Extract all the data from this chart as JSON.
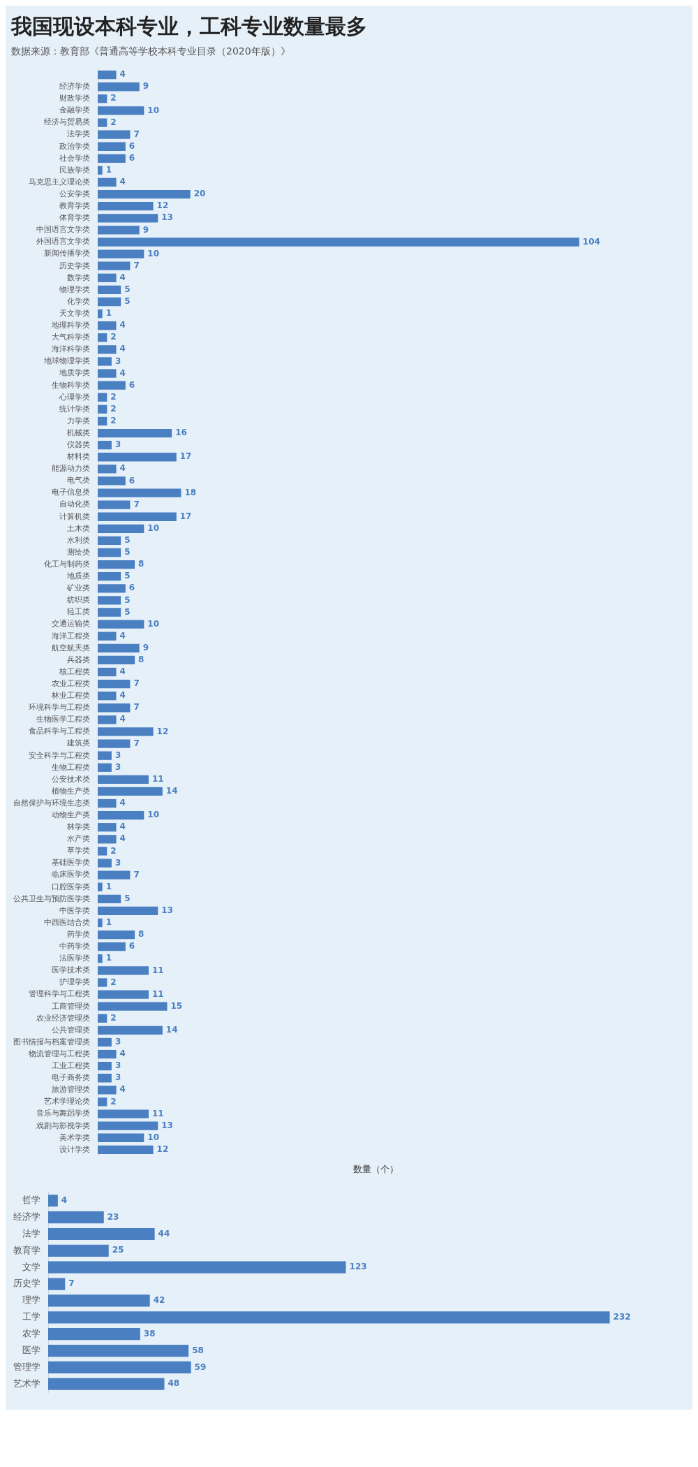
{
  "chart_data": [
    {
      "type": "bar",
      "title": "我国现设本科专业，工科专业数量最多",
      "annotations": [
        "数据来源：教育部《普通高等学校本科专业目录（2020年版）》"
      ],
      "xlabel": "数量（个）",
      "orientation": "horizontal",
      "categories": [
        null,
        "经济学类",
        "财政学类",
        "金融学类",
        "经济与贸易类",
        "法学类",
        "政治学类",
        "社会学类",
        "民族学类",
        "马克思主义理论类",
        "公安学类",
        "教育学类",
        "体育学类",
        "中国语言文学类",
        "外国语言文学类",
        "新闻传播学类",
        "历史学类",
        "数学类",
        "物理学类",
        "化学类",
        "天文学类",
        "地理科学类",
        "大气科学类",
        "海洋科学类",
        "地球物理学类",
        "地质学类",
        "生物科学类",
        "心理学类",
        "统计学类",
        "力学类",
        "机械类",
        "仪器类",
        "材料类",
        "能源动力类",
        "电气类",
        "电子信息类",
        "自动化类",
        "计算机类",
        "土木类",
        "水利类",
        "测绘类",
        "化工与制药类",
        "地质类",
        "矿业类",
        "纺织类",
        "轻工类",
        "交通运输类",
        "海洋工程类",
        "航空航天类",
        "兵器类",
        "核工程类",
        "农业工程类",
        "林业工程类",
        "环境科学与工程类",
        "生物医学工程类",
        "食品科学与工程类",
        "建筑类",
        "安全科学与工程类",
        "生物工程类",
        "公安技术类",
        "植物生产类",
        "自然保护与环境生态类",
        "动物生产类",
        "林学类",
        "水产类",
        "草学类",
        "基础医学类",
        "临床医学类",
        "口腔医学类",
        "公共卫生与预防医学类",
        "中医学类",
        "中西医结合类",
        "药学类",
        "中药学类",
        "法医学类",
        "医学技术类",
        "护理学类",
        "管理科学与工程类",
        "工商管理类",
        "农业经济管理类",
        "公共管理类",
        "图书情报与档案管理类",
        "物流管理与工程类",
        "工业工程类",
        "电子商务类",
        "旅游管理类",
        "艺术学理论类",
        "音乐与舞蹈学类",
        "戏剧与影视学类",
        "美术学类",
        "设计学类"
      ],
      "series": [
        {
          "color": "#4a7fc1",
          "values": [
            4,
            9,
            2,
            10,
            2,
            7,
            6,
            6,
            1,
            4,
            20,
            12,
            13,
            9,
            104,
            10,
            7,
            4,
            5,
            5,
            1,
            4,
            2,
            4,
            3,
            4,
            6,
            2,
            2,
            2,
            16,
            3,
            17,
            4,
            6,
            18,
            7,
            17,
            10,
            5,
            5,
            8,
            5,
            6,
            5,
            5,
            10,
            4,
            9,
            8,
            4,
            7,
            4,
            7,
            4,
            12,
            7,
            3,
            3,
            11,
            14,
            4,
            10,
            4,
            4,
            2,
            3,
            7,
            1,
            5,
            13,
            1,
            8,
            6,
            1,
            11,
            2,
            11,
            15,
            2,
            14,
            3,
            4,
            3,
            3,
            4,
            2,
            11,
            13,
            10,
            12
          ]
        }
      ],
      "data_labels": true
    },
    {
      "type": "bar",
      "orientation": "horizontal",
      "data_labels": true,
      "categories": [
        "哲学",
        "经济学",
        "法学",
        "教育学",
        "文学",
        "历史学",
        "理学",
        "工学",
        "农学",
        "医学",
        "管理学",
        "艺术学"
      ],
      "series": [
        {
          "color": "#4a7fc1",
          "values": [
            4,
            23,
            44,
            25,
            123,
            7,
            42,
            232,
            38,
            58,
            59,
            48
          ]
        }
      ]
    }
  ]
}
